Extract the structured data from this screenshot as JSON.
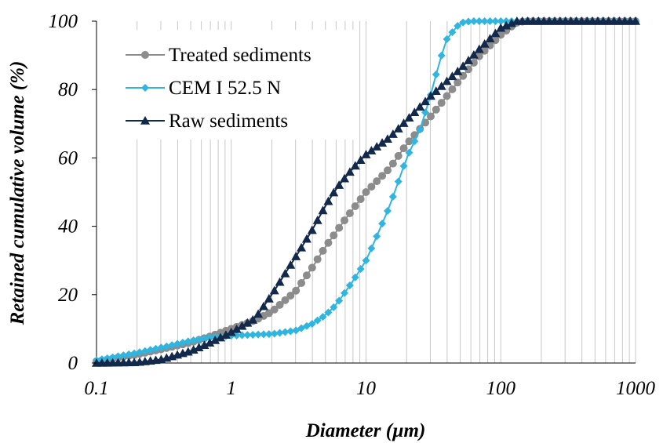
{
  "chart_data": {
    "type": "scatter",
    "title": "",
    "xlabel": "Diameter (µm)",
    "ylabel": "Retained cumulative volume (%)",
    "xscale": "log",
    "xlim": [
      0.1,
      1000
    ],
    "ylim": [
      0,
      100
    ],
    "x_ticks": [
      "0.1",
      "1",
      "10",
      "100",
      "1000"
    ],
    "y_ticks": [
      "0",
      "20",
      "40",
      "60",
      "80",
      "100"
    ],
    "grid": "vertical minor log lines",
    "legend_position": "top-left",
    "series": [
      {
        "name": "Treated sediments",
        "color": "#8c8c8c",
        "marker": "circle",
        "points": [
          [
            0.1,
            0.5
          ],
          [
            0.2,
            2.5
          ],
          [
            0.3,
            4
          ],
          [
            0.5,
            6
          ],
          [
            0.7,
            7.8
          ],
          [
            1,
            10
          ],
          [
            1.5,
            12.5
          ],
          [
            2,
            15
          ],
          [
            3,
            21
          ],
          [
            4,
            28
          ],
          [
            5,
            34
          ],
          [
            7,
            42
          ],
          [
            10,
            50
          ],
          [
            15,
            57
          ],
          [
            20,
            64
          ],
          [
            30,
            72
          ],
          [
            50,
            83
          ],
          [
            70,
            90
          ],
          [
            100,
            96
          ],
          [
            130,
            99.5
          ],
          [
            150,
            100
          ],
          [
            1000,
            100
          ]
        ]
      },
      {
        "name": "CEM I 52.5 N",
        "color": "#2fb5e0",
        "marker": "diamond",
        "points": [
          [
            0.1,
            0.8
          ],
          [
            0.2,
            3
          ],
          [
            0.3,
            4.5
          ],
          [
            0.5,
            6.5
          ],
          [
            0.7,
            7.5
          ],
          [
            1,
            8
          ],
          [
            2,
            8.5
          ],
          [
            3,
            9.5
          ],
          [
            4,
            11.5
          ],
          [
            5,
            14
          ],
          [
            6,
            17
          ],
          [
            8,
            24
          ],
          [
            10,
            30
          ],
          [
            12,
            37
          ],
          [
            15,
            46
          ],
          [
            17,
            52
          ],
          [
            20,
            60
          ],
          [
            25,
            68
          ],
          [
            30,
            78
          ],
          [
            35,
            88
          ],
          [
            40,
            95
          ],
          [
            50,
            99.5
          ],
          [
            60,
            100
          ],
          [
            1000,
            100
          ]
        ]
      },
      {
        "name": "Raw sediments",
        "color": "#13294b",
        "marker": "triangle",
        "points": [
          [
            0.1,
            0
          ],
          [
            0.2,
            0.2
          ],
          [
            0.3,
            1
          ],
          [
            0.5,
            3.5
          ],
          [
            0.7,
            6
          ],
          [
            1,
            9
          ],
          [
            1.5,
            13
          ],
          [
            2,
            20
          ],
          [
            3,
            31
          ],
          [
            4,
            39
          ],
          [
            5,
            46
          ],
          [
            6,
            51
          ],
          [
            8,
            57
          ],
          [
            10,
            61
          ],
          [
            15,
            66
          ],
          [
            20,
            71
          ],
          [
            30,
            78
          ],
          [
            50,
            86
          ],
          [
            70,
            92
          ],
          [
            100,
            98
          ],
          [
            130,
            100
          ],
          [
            1000,
            100
          ]
        ]
      }
    ]
  }
}
